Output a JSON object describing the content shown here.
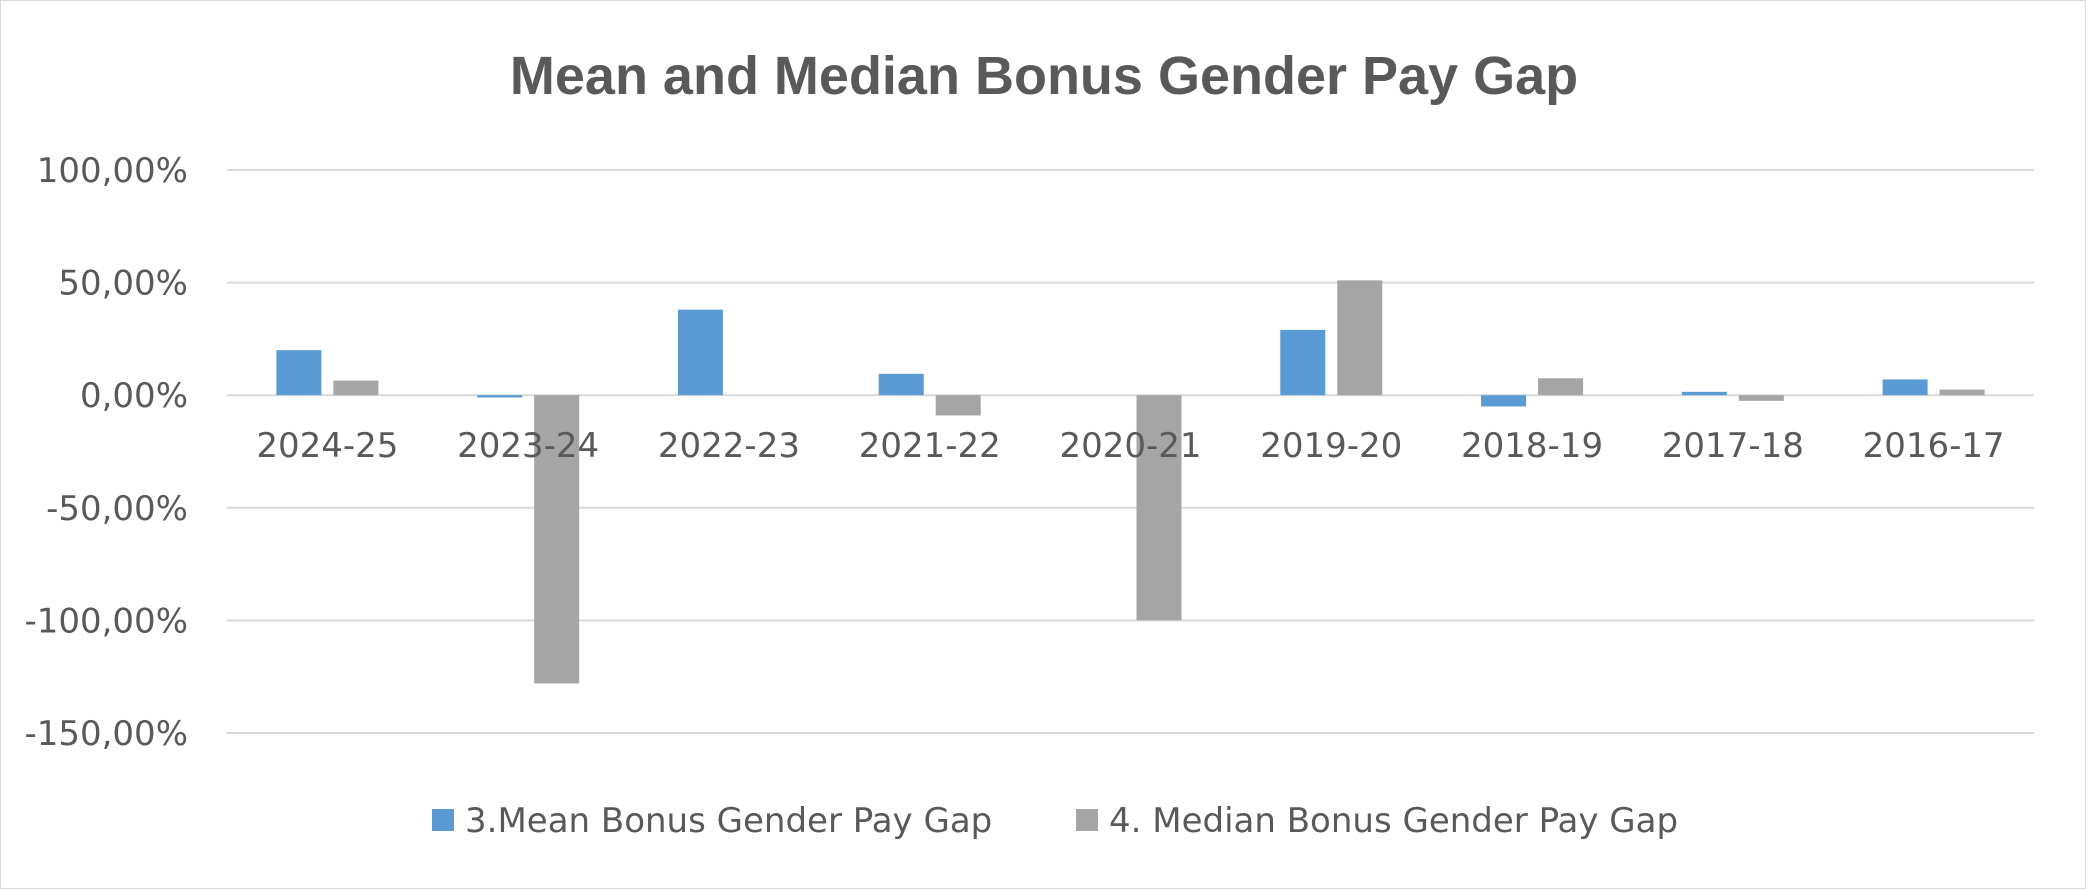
{
  "chart_data": {
    "type": "bar",
    "title": "Mean and Median Bonus Gender Pay Gap",
    "categories": [
      "2024-25",
      "2023-24",
      "2022-23",
      "2021-22",
      "2020-21",
      "2019-20",
      "2018-19",
      "2017-18",
      "2016-17"
    ],
    "series": [
      {
        "name": "3.Mean Bonus Gender Pay Gap",
        "color": "#5b9bd5",
        "values": [
          20.0,
          -1.0,
          38.0,
          9.5,
          0.0,
          29.0,
          -5.0,
          1.5,
          7.0
        ]
      },
      {
        "name": "4. Median Bonus Gender Pay Gap",
        "color": "#a5a5a5",
        "values": [
          6.5,
          -128.0,
          0.0,
          -9.0,
          -100.0,
          51.0,
          7.5,
          -2.5,
          2.5
        ]
      }
    ],
    "y_ticks": [
      "100,00%",
      "50,00%",
      "0,00%",
      "-50,00%",
      "-100,00%",
      "-150,00%"
    ],
    "y_tick_values": [
      100,
      50,
      0,
      -50,
      -100,
      -150
    ],
    "ylim": [
      -150,
      100
    ],
    "grid": true,
    "legend_position": "bottom"
  }
}
